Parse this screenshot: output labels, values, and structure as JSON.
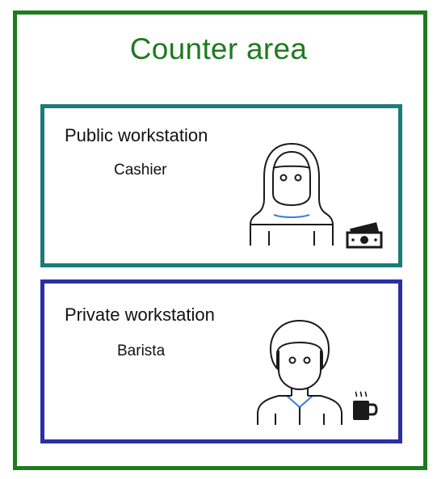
{
  "diagram": {
    "title": "Counter area",
    "panels": [
      {
        "id": "public",
        "title": "Public workstation",
        "role": "Cashier",
        "person_icon": "masked-cashier-icon",
        "item_icon": "money-icon",
        "border_color": "#1b7b78"
      },
      {
        "id": "private",
        "title": "Private workstation",
        "role": "Barista",
        "person_icon": "barista-person-icon",
        "item_icon": "coffee-cup-icon",
        "border_color": "#2b2fa3"
      }
    ],
    "outer_border_color": "#1e7b1e"
  }
}
